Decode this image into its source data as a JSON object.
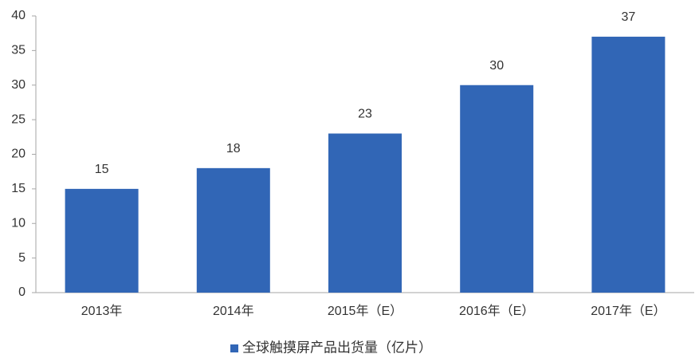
{
  "chart_data": {
    "type": "bar",
    "categories": [
      "2013年",
      "2014年",
      "2015年（E）",
      "2016年（E）",
      "2017年（E）"
    ],
    "series": [
      {
        "name": "全球触摸屏产品出货量（亿片）",
        "color": "#3166b6",
        "values": [
          15,
          18,
          23,
          30,
          37
        ]
      }
    ],
    "ylim": [
      0,
      40
    ],
    "yticks": [
      0,
      5,
      10,
      15,
      20,
      25,
      30,
      35,
      40
    ],
    "grid": false,
    "legend": "bottom"
  }
}
